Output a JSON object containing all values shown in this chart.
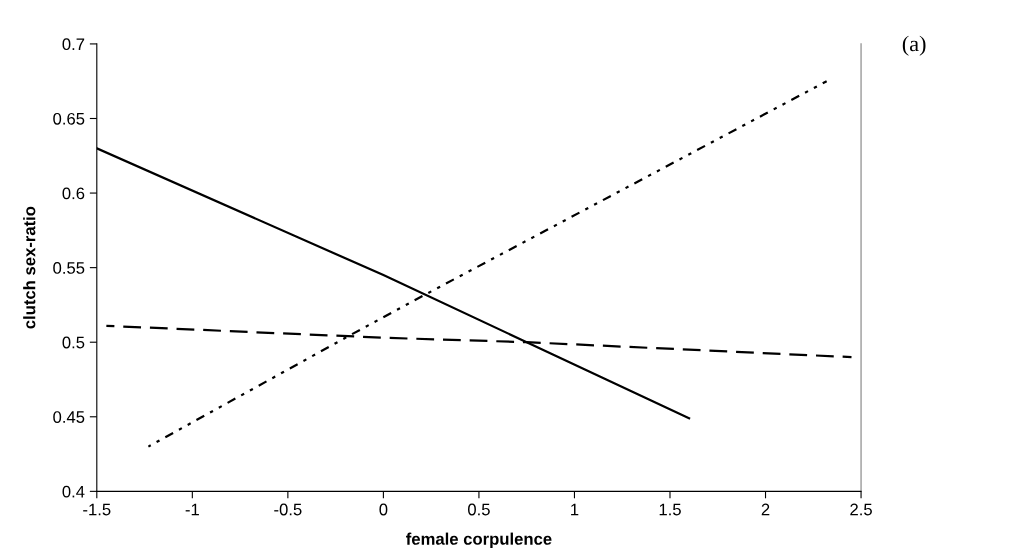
{
  "chart_data": {
    "type": "line",
    "xlabel": "female corpulence",
    "ylabel": "clutch sex-ratio",
    "xlim": [
      -1.5,
      2.5
    ],
    "xticks": [
      -1.5,
      -1,
      -0.5,
      0,
      0.5,
      1,
      1.5,
      2,
      2.5
    ],
    "ylim": [
      0.4,
      0.7
    ],
    "yticks": [
      0.4,
      0.45,
      0.5,
      0.55,
      0.6,
      0.65,
      0.7
    ],
    "grid": false,
    "marker": "none",
    "series": [
      {
        "color": "#000000",
        "line_style": "solid",
        "x": [
          -1.5,
          0,
          0.75,
          1.6
        ],
        "values": [
          0.63,
          0.545,
          0.5,
          0.449
        ]
      },
      {
        "color": "#000000",
        "line_style": "dashed",
        "x": [
          -1.45,
          0,
          0.75,
          2.45
        ],
        "values": [
          0.511,
          0.503,
          0.5,
          0.49
        ]
      },
      {
        "color": "#000000",
        "line_style": "dotted",
        "x": [
          -1.23,
          -0.17,
          0.22,
          2.32
        ],
        "values": [
          0.43,
          0.505,
          0.532,
          0.675
        ]
      }
    ],
    "annotations": [
      "(a)"
    ]
  }
}
